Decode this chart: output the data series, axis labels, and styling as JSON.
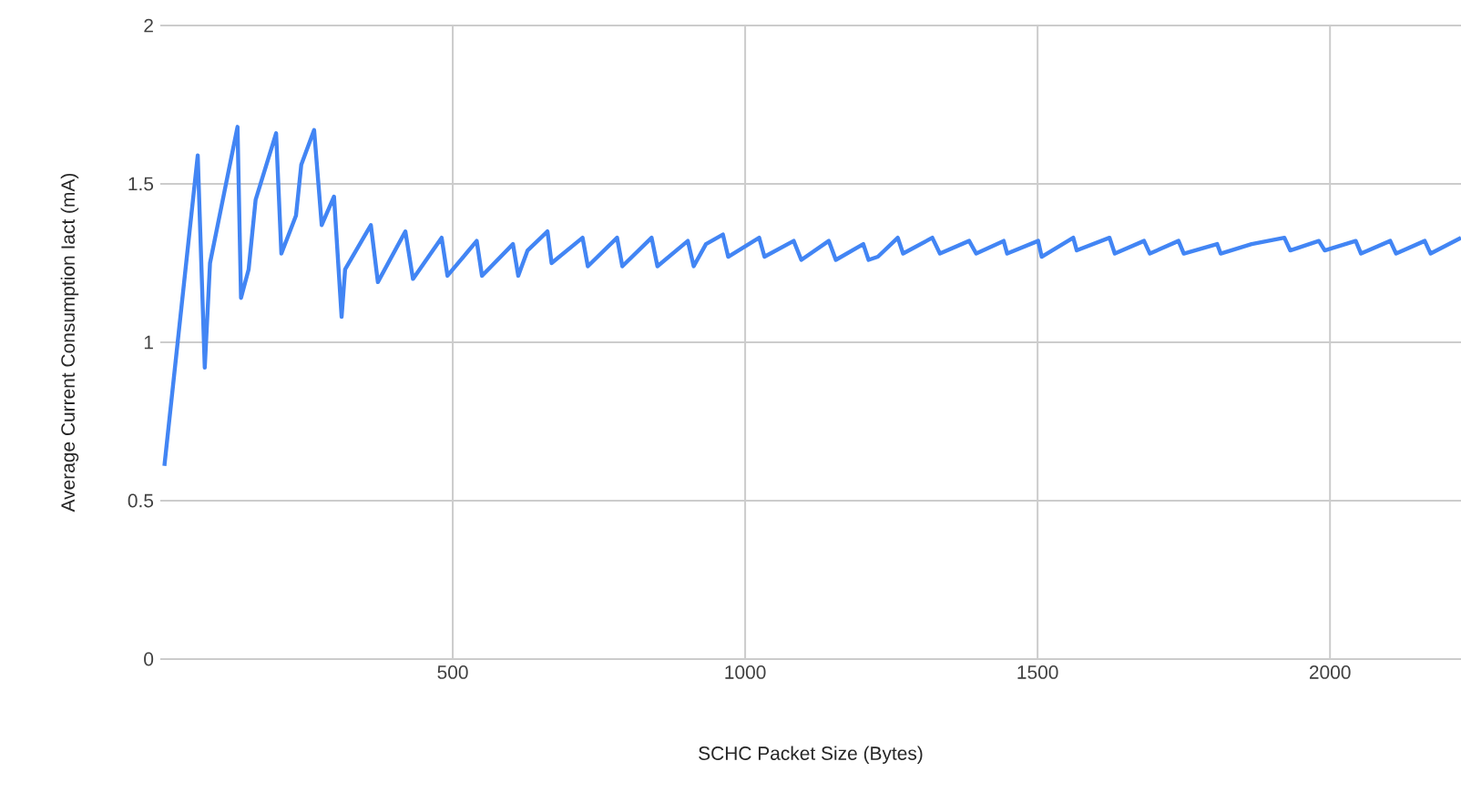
{
  "chart_data": {
    "type": "line",
    "xlabel": "SCHC Packet Size (Bytes)",
    "ylabel": "Average Current Consumption Iact (mA)",
    "xlim": [
      0,
      2224
    ],
    "xticks": [
      500,
      1000,
      1500,
      2000
    ],
    "ylim": [
      0,
      2
    ],
    "yticks": [
      0,
      0.5,
      1,
      1.5,
      2
    ],
    "grid": true,
    "series": [
      {
        "color": "#4285f4",
        "x": [
          7,
          64,
          76,
          85,
          132,
          138,
          151,
          163,
          198,
          207,
          232,
          241,
          263,
          276,
          297,
          310,
          316,
          360,
          372,
          419,
          432,
          481,
          491,
          541,
          550,
          603,
          612,
          628,
          662,
          669,
          722,
          731,
          781,
          790,
          840,
          850,
          902,
          912,
          933,
          962,
          971,
          1024,
          1033,
          1083,
          1096,
          1143,
          1155,
          1202,
          1211,
          1227,
          1261,
          1270,
          1320,
          1333,
          1383,
          1395,
          1442,
          1448,
          1501,
          1507,
          1561,
          1567,
          1623,
          1632,
          1682,
          1692,
          1741,
          1750,
          1807,
          1813,
          1866,
          1922,
          1932,
          1981,
          1991,
          2044,
          2053,
          2103,
          2113,
          2162,
          2172,
          2224
        ],
        "values": [
          0.61,
          1.59,
          0.92,
          1.25,
          1.68,
          1.14,
          1.23,
          1.45,
          1.66,
          1.28,
          1.4,
          1.56,
          1.67,
          1.37,
          1.46,
          1.08,
          1.23,
          1.37,
          1.19,
          1.35,
          1.2,
          1.33,
          1.21,
          1.32,
          1.21,
          1.31,
          1.21,
          1.29,
          1.35,
          1.25,
          1.33,
          1.24,
          1.33,
          1.24,
          1.33,
          1.24,
          1.32,
          1.24,
          1.31,
          1.34,
          1.27,
          1.33,
          1.27,
          1.32,
          1.26,
          1.32,
          1.26,
          1.31,
          1.26,
          1.27,
          1.33,
          1.28,
          1.33,
          1.28,
          1.32,
          1.28,
          1.32,
          1.28,
          1.32,
          1.27,
          1.33,
          1.29,
          1.33,
          1.28,
          1.32,
          1.28,
          1.32,
          1.28,
          1.31,
          1.28,
          1.31,
          1.33,
          1.29,
          1.32,
          1.29,
          1.32,
          1.28,
          1.32,
          1.28,
          1.32,
          1.28,
          1.33
        ]
      }
    ]
  }
}
